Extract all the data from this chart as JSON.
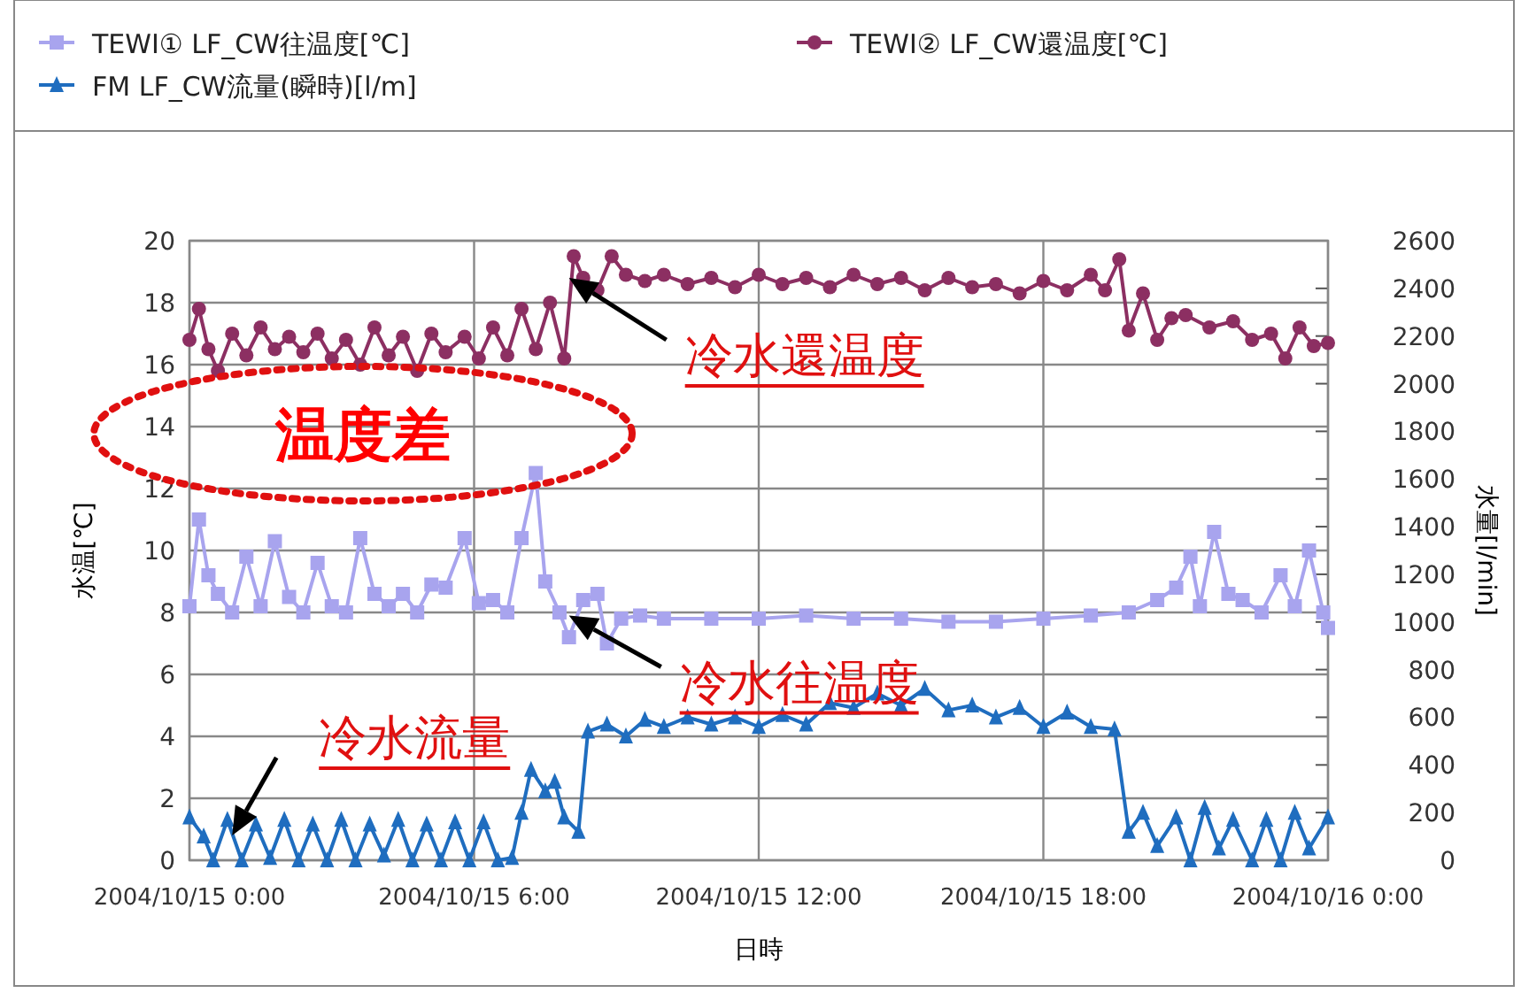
{
  "chart_data": {
    "type": "line",
    "xlabel": "日時",
    "ylabel": "水温[℃]",
    "y2label": "水量[l/min]",
    "xlim": [
      "2004-10-15T00:00",
      "2004-10-16T00:00"
    ],
    "xticks": [
      {
        "value": "2004-10-15T00:00",
        "label": "2004/10/15 0:00"
      },
      {
        "value": "2004-10-15T06:00",
        "label": "2004/10/15 6:00"
      },
      {
        "value": "2004-10-15T12:00",
        "label": "2004/10/15 12:00"
      },
      {
        "value": "2004-10-15T18:00",
        "label": "2004/10/15 18:00"
      },
      {
        "value": "2004-10-16T00:00",
        "label": "2004/10/16 0:00"
      }
    ],
    "ylim": [
      0,
      20
    ],
    "yticks": [
      0,
      2,
      4,
      6,
      8,
      10,
      12,
      14,
      16,
      18,
      20
    ],
    "y2lim": [
      0,
      2600
    ],
    "y2ticks": [
      0,
      200,
      400,
      600,
      800,
      1000,
      1200,
      1400,
      1600,
      1800,
      2000,
      2200,
      2400,
      2600
    ],
    "grid": true,
    "legend": "top",
    "series": [
      {
        "name": "TEWI① LF_CW往温度[℃]",
        "color": "#a8a4ee",
        "marker": "square",
        "x": [
          "2004-10-15T00:00",
          "2004-10-15T00:12",
          "2004-10-15T00:24",
          "2004-10-15T00:36",
          "2004-10-15T00:54",
          "2004-10-15T01:12",
          "2004-10-15T01:30",
          "2004-10-15T01:48",
          "2004-10-15T02:06",
          "2004-10-15T02:24",
          "2004-10-15T02:42",
          "2004-10-15T03:00",
          "2004-10-15T03:18",
          "2004-10-15T03:36",
          "2004-10-15T03:54",
          "2004-10-15T04:12",
          "2004-10-15T04:30",
          "2004-10-15T04:48",
          "2004-10-15T05:06",
          "2004-10-15T05:24",
          "2004-10-15T05:48",
          "2004-10-15T06:06",
          "2004-10-15T06:24",
          "2004-10-15T06:42",
          "2004-10-15T07:00",
          "2004-10-15T07:18",
          "2004-10-15T07:30",
          "2004-10-15T07:48",
          "2004-10-15T08:00",
          "2004-10-15T08:18",
          "2004-10-15T08:36",
          "2004-10-15T08:48",
          "2004-10-15T09:06",
          "2004-10-15T09:30",
          "2004-10-15T10:00",
          "2004-10-15T11:00",
          "2004-10-15T12:00",
          "2004-10-15T13:00",
          "2004-10-15T14:00",
          "2004-10-15T15:00",
          "2004-10-15T16:00",
          "2004-10-15T17:00",
          "2004-10-15T18:00",
          "2004-10-15T19:00",
          "2004-10-15T19:48",
          "2004-10-15T20:24",
          "2004-10-15T20:48",
          "2004-10-15T21:06",
          "2004-10-15T21:18",
          "2004-10-15T21:36",
          "2004-10-15T21:54",
          "2004-10-15T22:12",
          "2004-10-15T22:36",
          "2004-10-15T23:00",
          "2004-10-15T23:18",
          "2004-10-15T23:36",
          "2004-10-15T23:54",
          "2004-10-16T00:00"
        ],
        "values": [
          8.2,
          11.0,
          9.2,
          8.6,
          8.0,
          9.8,
          8.2,
          10.3,
          8.5,
          8.0,
          9.6,
          8.2,
          8.0,
          10.4,
          8.6,
          8.2,
          8.6,
          8.0,
          8.9,
          8.8,
          10.4,
          8.3,
          8.4,
          8.0,
          10.4,
          12.5,
          9.0,
          8.0,
          7.2,
          8.4,
          8.6,
          7.0,
          7.8,
          7.9,
          7.8,
          7.8,
          7.8,
          7.9,
          7.8,
          7.8,
          7.7,
          7.7,
          7.8,
          7.9,
          8.0,
          8.4,
          8.8,
          9.8,
          8.2,
          10.6,
          8.6,
          8.4,
          8.0,
          9.2,
          8.2,
          10.0,
          8.0,
          7.5
        ]
      },
      {
        "name": "TEWI② LF_CW還温度[℃]",
        "color": "#8c2f62",
        "marker": "circle",
        "x": [
          "2004-10-15T00:00",
          "2004-10-15T00:12",
          "2004-10-15T00:24",
          "2004-10-15T00:36",
          "2004-10-15T00:54",
          "2004-10-15T01:12",
          "2004-10-15T01:30",
          "2004-10-15T01:48",
          "2004-10-15T02:06",
          "2004-10-15T02:24",
          "2004-10-15T02:42",
          "2004-10-15T03:00",
          "2004-10-15T03:18",
          "2004-10-15T03:36",
          "2004-10-15T03:54",
          "2004-10-15T04:12",
          "2004-10-15T04:30",
          "2004-10-15T04:48",
          "2004-10-15T05:06",
          "2004-10-15T05:24",
          "2004-10-15T05:48",
          "2004-10-15T06:06",
          "2004-10-15T06:24",
          "2004-10-15T06:42",
          "2004-10-15T07:00",
          "2004-10-15T07:18",
          "2004-10-15T07:36",
          "2004-10-15T07:54",
          "2004-10-15T08:06",
          "2004-10-15T08:18",
          "2004-10-15T08:36",
          "2004-10-15T08:54",
          "2004-10-15T09:12",
          "2004-10-15T09:36",
          "2004-10-15T10:00",
          "2004-10-15T10:30",
          "2004-10-15T11:00",
          "2004-10-15T11:30",
          "2004-10-15T12:00",
          "2004-10-15T12:30",
          "2004-10-15T13:00",
          "2004-10-15T13:30",
          "2004-10-15T14:00",
          "2004-10-15T14:30",
          "2004-10-15T15:00",
          "2004-10-15T15:30",
          "2004-10-15T16:00",
          "2004-10-15T16:30",
          "2004-10-15T17:00",
          "2004-10-15T17:30",
          "2004-10-15T18:00",
          "2004-10-15T18:30",
          "2004-10-15T19:00",
          "2004-10-15T19:18",
          "2004-10-15T19:36",
          "2004-10-15T19:48",
          "2004-10-15T20:06",
          "2004-10-15T20:24",
          "2004-10-15T20:42",
          "2004-10-15T21:00",
          "2004-10-15T21:30",
          "2004-10-15T22:00",
          "2004-10-15T22:24",
          "2004-10-15T22:48",
          "2004-10-15T23:06",
          "2004-10-15T23:24",
          "2004-10-15T23:42",
          "2004-10-16T00:00"
        ],
        "values": [
          16.8,
          17.8,
          16.5,
          15.8,
          17.0,
          16.3,
          17.2,
          16.5,
          16.9,
          16.4,
          17.0,
          16.2,
          16.8,
          16.0,
          17.2,
          16.3,
          16.9,
          15.8,
          17.0,
          16.4,
          16.9,
          16.2,
          17.2,
          16.3,
          17.8,
          16.5,
          18.0,
          16.2,
          19.5,
          18.8,
          18.4,
          19.5,
          18.9,
          18.7,
          18.9,
          18.6,
          18.8,
          18.5,
          18.9,
          18.6,
          18.8,
          18.5,
          18.9,
          18.6,
          18.8,
          18.4,
          18.8,
          18.5,
          18.6,
          18.3,
          18.7,
          18.4,
          18.9,
          18.4,
          19.4,
          17.1,
          18.3,
          16.8,
          17.5,
          17.6,
          17.2,
          17.4,
          16.8,
          17.0,
          16.2,
          17.2,
          16.6,
          16.7
        ]
      },
      {
        "name": "FM LF_CW流量(瞬時)[l/m]",
        "color": "#1f6dbf",
        "marker": "triangle",
        "axis": "y2",
        "x": [
          "2004-10-15T00:00",
          "2004-10-15T00:18",
          "2004-10-15T00:30",
          "2004-10-15T00:48",
          "2004-10-15T01:06",
          "2004-10-15T01:24",
          "2004-10-15T01:42",
          "2004-10-15T02:00",
          "2004-10-15T02:18",
          "2004-10-15T02:36",
          "2004-10-15T02:54",
          "2004-10-15T03:12",
          "2004-10-15T03:30",
          "2004-10-15T03:48",
          "2004-10-15T04:06",
          "2004-10-15T04:24",
          "2004-10-15T04:42",
          "2004-10-15T05:00",
          "2004-10-15T05:18",
          "2004-10-15T05:36",
          "2004-10-15T05:54",
          "2004-10-15T06:12",
          "2004-10-15T06:30",
          "2004-10-15T06:48",
          "2004-10-15T07:00",
          "2004-10-15T07:12",
          "2004-10-15T07:30",
          "2004-10-15T07:42",
          "2004-10-15T07:54",
          "2004-10-15T08:12",
          "2004-10-15T08:24",
          "2004-10-15T08:48",
          "2004-10-15T09:12",
          "2004-10-15T09:36",
          "2004-10-15T10:00",
          "2004-10-15T10:30",
          "2004-10-15T11:00",
          "2004-10-15T11:30",
          "2004-10-15T12:00",
          "2004-10-15T12:30",
          "2004-10-15T13:00",
          "2004-10-15T13:30",
          "2004-10-15T14:00",
          "2004-10-15T14:30",
          "2004-10-15T15:00",
          "2004-10-15T15:30",
          "2004-10-15T16:00",
          "2004-10-15T16:30",
          "2004-10-15T17:00",
          "2004-10-15T17:30",
          "2004-10-15T18:00",
          "2004-10-15T18:30",
          "2004-10-15T19:00",
          "2004-10-15T19:30",
          "2004-10-15T19:48",
          "2004-10-15T20:06",
          "2004-10-15T20:24",
          "2004-10-15T20:48",
          "2004-10-15T21:06",
          "2004-10-15T21:24",
          "2004-10-15T21:42",
          "2004-10-15T22:00",
          "2004-10-15T22:24",
          "2004-10-15T22:42",
          "2004-10-15T23:00",
          "2004-10-15T23:18",
          "2004-10-15T23:36",
          "2004-10-16T00:00"
        ],
        "values": [
          180,
          100,
          0,
          170,
          0,
          150,
          10,
          170,
          0,
          150,
          0,
          170,
          0,
          150,
          20,
          170,
          0,
          150,
          0,
          160,
          0,
          160,
          0,
          10,
          200,
          380,
          290,
          330,
          180,
          120,
          540,
          570,
          520,
          590,
          560,
          600,
          570,
          600,
          560,
          610,
          570,
          660,
          640,
          700,
          650,
          720,
          630,
          650,
          600,
          640,
          560,
          620,
          560,
          550,
          120,
          200,
          60,
          180,
          0,
          220,
          50,
          170,
          0,
          170,
          0,
          200,
          50,
          180
        ]
      }
    ],
    "annotations": [
      {
        "text": "冷水還温度",
        "x": "2004-10-15T08:00",
        "y": 18.8
      },
      {
        "text": "冷水往温度",
        "x": "2004-10-15T08:00",
        "y": 7.9
      },
      {
        "text": "冷水流量",
        "x": "2004-10-15T00:54",
        "y": 0.8
      },
      "温度差"
    ]
  }
}
